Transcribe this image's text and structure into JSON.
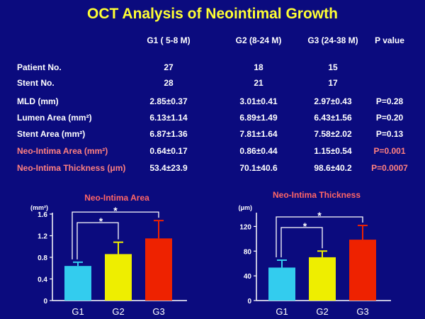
{
  "title": "OCT Analysis of Neointimal Growth",
  "table": {
    "columns": [
      "G1 ( 5-8 M)",
      "G2 (8-24 M)",
      "G3 (24-38 M)",
      "P value"
    ],
    "rows": [
      {
        "label": "Patient No.",
        "values": [
          "27",
          "18",
          "15",
          ""
        ],
        "highlight": false
      },
      {
        "label": "Stent No.",
        "values": [
          "28",
          "21",
          "17",
          ""
        ],
        "highlight": false
      },
      {
        "label": "MLD (mm)",
        "values": [
          "2.85±0.37",
          "3.01±0.41",
          "2.97±0.43",
          "P=0.28"
        ],
        "highlight": false
      },
      {
        "label": "Lumen Area (mm²)",
        "values": [
          "6.13±1.14",
          "6.89±1.49",
          "6.43±1.56",
          "P=0.20"
        ],
        "highlight": false
      },
      {
        "label": "Stent Area (mm²)",
        "values": [
          "6.87±1.36",
          "7.81±1.64",
          "7.58±2.02",
          "P=0.13"
        ],
        "highlight": false
      },
      {
        "label": "Neo-Intima Area (mm²)",
        "values": [
          "0.64±0.17",
          "0.86±0.44",
          "1.15±0.54",
          "P=0.001"
        ],
        "highlight": true
      },
      {
        "label": "Neo-Intima Thickness (μm)",
        "values": [
          "53.4±23.9",
          "70.1±40.6",
          "98.6±40.2",
          "P=0.0007"
        ],
        "highlight": true
      }
    ]
  },
  "colors": {
    "background": "#0b0b7e",
    "title": "#ffff33",
    "highlight": "#ff8080",
    "bars": [
      "#33ccee",
      "#eeee00",
      "#ee2200"
    ]
  },
  "chart_data": [
    {
      "type": "bar",
      "title": "Neo-Intima Area",
      "ylabel": "(mm²)",
      "categories": [
        "G1",
        "G2",
        "G3"
      ],
      "values": [
        0.64,
        0.86,
        1.15
      ],
      "errors": [
        0.07,
        0.22,
        0.33
      ],
      "ylim": [
        0,
        1.6
      ],
      "yticks": [
        "0",
        "0.4",
        "0.8",
        "1.2",
        "1.6"
      ],
      "significance": [
        "*",
        "*"
      ]
    },
    {
      "type": "bar",
      "title": "Neo-Intima Thickness",
      "ylabel": "(μm)",
      "categories": [
        "G1",
        "G2",
        "G3"
      ],
      "values": [
        53.4,
        70.1,
        98.6
      ],
      "errors": [
        12,
        10,
        23
      ],
      "ylim": [
        0,
        140
      ],
      "yticks": [
        "0",
        "40",
        "80",
        "120"
      ],
      "significance": [
        "*",
        "*"
      ]
    }
  ]
}
